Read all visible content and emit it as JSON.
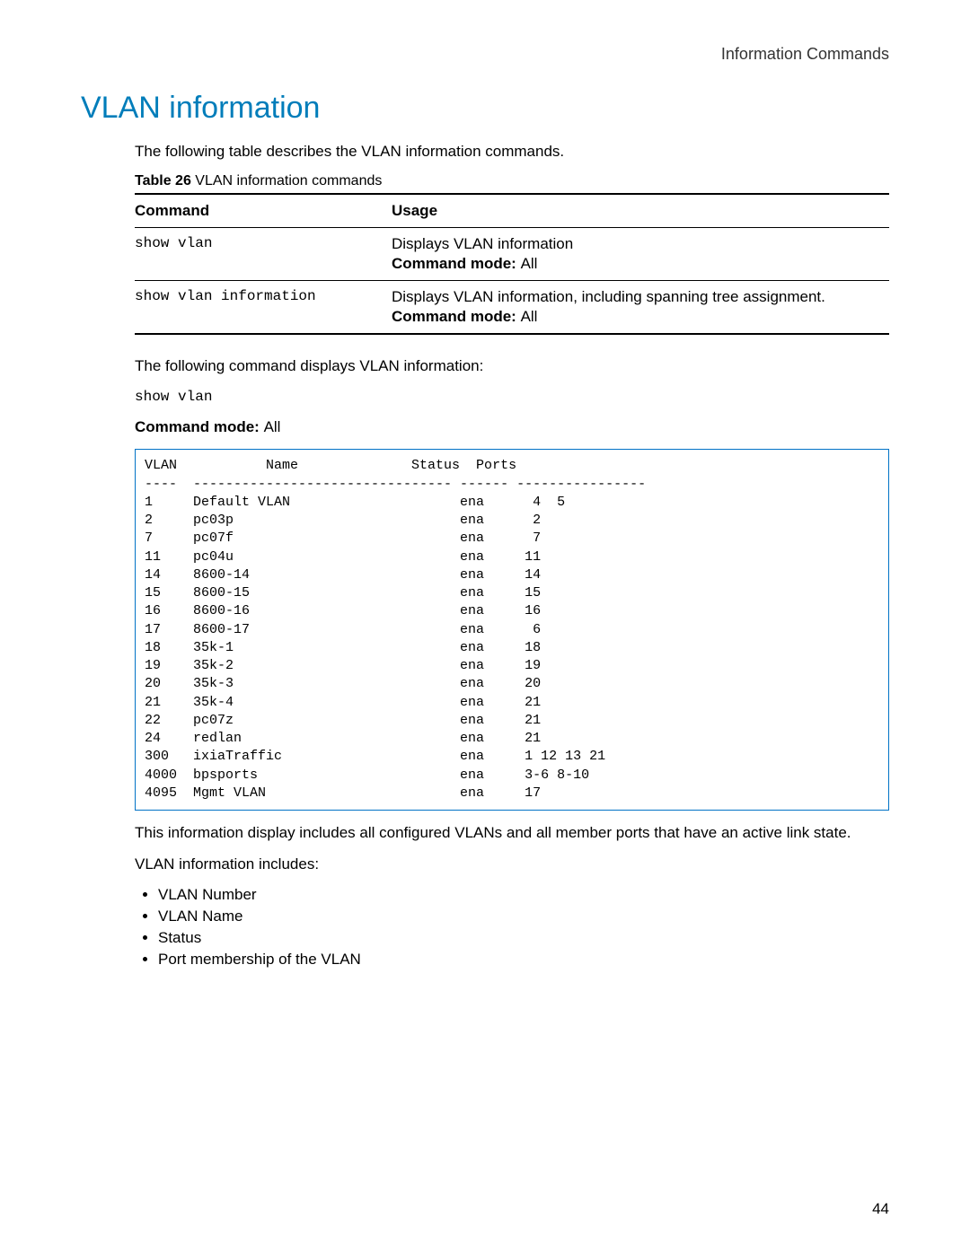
{
  "header": {
    "right": "Information Commands"
  },
  "title": "VLAN information",
  "intro": "The following table describes the VLAN information commands.",
  "table_caption": {
    "label": "Table 26",
    "text": " VLAN information commands"
  },
  "cmd_table": {
    "headers": {
      "col1": "Command",
      "col2": "Usage"
    },
    "cmd_mode_label": "Command mode: ",
    "rows": [
      {
        "command": "show vlan",
        "usage": "Displays VLAN information",
        "mode": "All"
      },
      {
        "command": "show vlan information",
        "usage": "Displays VLAN information, including spanning tree assignment.",
        "mode": "All"
      }
    ]
  },
  "para2": "The following command displays VLAN information:",
  "command_line": "show vlan",
  "mode_line": {
    "label": "Command mode: ",
    "value": "All"
  },
  "output_box": {
    "border_color": "#0072c6",
    "font_family": "Courier New",
    "header_line": "VLAN           Name              Status  Ports",
    "divider_line": "----  -------------------------------- ------ ----------------",
    "rows": [
      {
        "vlan": "1",
        "name": "Default VLAN",
        "status": "ena",
        "ports": " 4  5"
      },
      {
        "vlan": "2",
        "name": "pc03p",
        "status": "ena",
        "ports": " 2"
      },
      {
        "vlan": "7",
        "name": "pc07f",
        "status": "ena",
        "ports": " 7"
      },
      {
        "vlan": "11",
        "name": "pc04u",
        "status": "ena",
        "ports": "11"
      },
      {
        "vlan": "14",
        "name": "8600-14",
        "status": "ena",
        "ports": "14"
      },
      {
        "vlan": "15",
        "name": "8600-15",
        "status": "ena",
        "ports": "15"
      },
      {
        "vlan": "16",
        "name": "8600-16",
        "status": "ena",
        "ports": "16"
      },
      {
        "vlan": "17",
        "name": "8600-17",
        "status": "ena",
        "ports": " 6"
      },
      {
        "vlan": "18",
        "name": "35k-1",
        "status": "ena",
        "ports": "18"
      },
      {
        "vlan": "19",
        "name": "35k-2",
        "status": "ena",
        "ports": "19"
      },
      {
        "vlan": "20",
        "name": "35k-3",
        "status": "ena",
        "ports": "20"
      },
      {
        "vlan": "21",
        "name": "35k-4",
        "status": "ena",
        "ports": "21"
      },
      {
        "vlan": "22",
        "name": "pc07z",
        "status": "ena",
        "ports": "21"
      },
      {
        "vlan": "24",
        "name": "redlan",
        "status": "ena",
        "ports": "21"
      },
      {
        "vlan": "300",
        "name": "ixiaTraffic",
        "status": "ena",
        "ports": "1 12 13 21"
      },
      {
        "vlan": "4000",
        "name": "bpsports",
        "status": "ena",
        "ports": "3-6 8-10"
      },
      {
        "vlan": "4095",
        "name": "Mgmt VLAN",
        "status": "ena",
        "ports": "17"
      }
    ],
    "col_widths": {
      "vlan": 6,
      "name": 33,
      "status_pad": 3,
      "ports_pad": 2
    }
  },
  "para3": "This information display includes all configured VLANs and all member ports that have an active link state.",
  "para4": "VLAN information includes:",
  "bullets": [
    "VLAN Number",
    "VLAN Name",
    "Status",
    "Port membership of the VLAN"
  ],
  "page_number": "44",
  "colors": {
    "title": "#007dba",
    "text": "#000000",
    "border": "#000000"
  }
}
